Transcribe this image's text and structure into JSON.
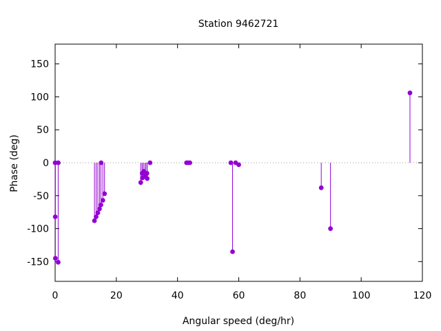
{
  "chart_data": {
    "type": "scatter",
    "style": "impulses-with-points",
    "title": "Station 9462721",
    "xlabel": "Angular speed (deg/hr)",
    "ylabel": "Phase (deg)",
    "xlim": [
      0,
      120
    ],
    "ylim": [
      -180,
      180
    ],
    "xticks": [
      "0",
      "20",
      "40",
      "60",
      "80",
      "100",
      "120"
    ],
    "yticks": [
      "-150",
      "-100",
      "-50",
      "0",
      "50",
      "100",
      "150"
    ],
    "xtick_values": [
      0,
      20,
      40,
      60,
      80,
      100,
      120
    ],
    "ytick_values": [
      -150,
      -100,
      -50,
      0,
      50,
      100,
      150
    ],
    "zero_line": "dotted",
    "grid": false,
    "color": "#9400d3",
    "x": [
      0.0,
      0.04,
      0.08,
      1.02,
      1.0,
      12.85,
      13.4,
      13.94,
      14.5,
      14.96,
      15.04,
      15.59,
      16.14,
      27.97,
      28.44,
      28.51,
      28.98,
      29.46,
      29.53,
      30.0,
      30.08,
      31.02,
      42.93,
      43.48,
      44.03,
      57.42,
      57.97,
      58.98,
      60.0,
      86.95,
      89.97,
      115.94
    ],
    "y": [
      0,
      -82,
      -145,
      0,
      -151,
      -88,
      -82,
      -76,
      -70,
      -64,
      0,
      -57,
      -47,
      -30,
      -16,
      -23,
      -13,
      -21,
      -20,
      -16,
      -24,
      0,
      0,
      0,
      0,
      0,
      -135,
      0,
      -3,
      -38,
      -100,
      106
    ]
  }
}
